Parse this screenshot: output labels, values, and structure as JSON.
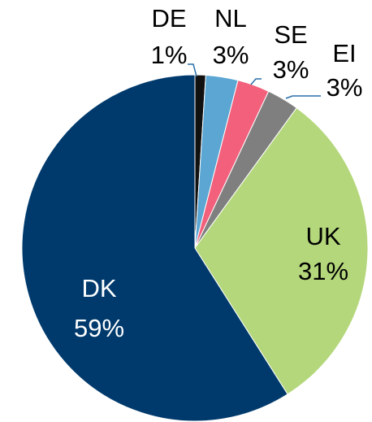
{
  "chart_data": {
    "type": "pie",
    "categories": [
      "DE",
      "NL",
      "SE",
      "EI",
      "UK",
      "DK"
    ],
    "values": [
      1,
      3,
      3,
      3,
      31,
      59
    ],
    "value_labels": [
      "1%",
      "3%",
      "3%",
      "3%",
      "31%",
      "59%"
    ],
    "colors": [
      "#111111",
      "#5ba6d3",
      "#f2607c",
      "#7f7f7f",
      "#b4d77b",
      "#003a6c"
    ]
  }
}
